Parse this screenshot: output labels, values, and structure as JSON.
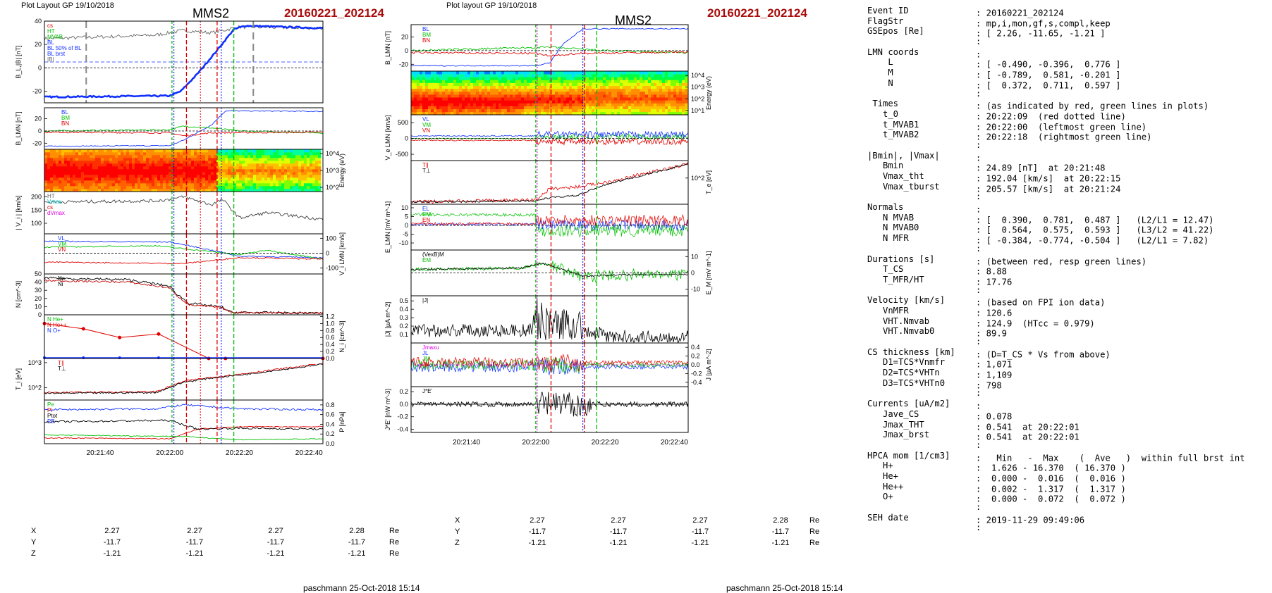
{
  "header": {
    "left_layout": "Plot Layout GP 19/10/2018",
    "mid_layout": "Plot layout GP 19/10/2018",
    "probe": "MMS2",
    "event": "20160221_202124",
    "footer": "paschmann 25-Oct-2018 15:14"
  },
  "colors": {
    "red": "#e00000",
    "green": "#00c000",
    "blue": "#1030ff",
    "black": "#000000",
    "magenta": "#e000e0",
    "cyan": "#00c0c0",
    "event": "#a80c0c"
  },
  "left_panels": [
    {
      "ylabel": "B_L,|B| [nT]",
      "ticks": [
        "40",
        "20",
        "0",
        "-20"
      ],
      "legend": [
        "cs",
        "HT",
        "MVAB",
        "BL",
        "BL 50% of BL",
        "BL brst",
        "|B|"
      ]
    },
    {
      "ylabel": "B_LMN [nT]",
      "ticks": [
        "20",
        "0",
        "-20"
      ],
      "legend": [
        "BL",
        "BM",
        "BN"
      ]
    },
    {
      "ylabel": "Energy (eV)",
      "ticks": [
        "10^4",
        "10^3",
        "10^2"
      ],
      "legend": []
    },
    {
      "ylabel": "| V_i | [km/s]",
      "ticks": [
        "200",
        "150",
        "100"
      ],
      "legend": [
        "HT",
        "Vmax",
        "cs",
        "dVmax"
      ]
    },
    {
      "ylabel": "V_i LMN [km/s]",
      "ticks": [
        "100",
        "0",
        "-100"
      ],
      "legend": [
        "VL",
        "VM",
        "VN"
      ]
    },
    {
      "ylabel": "N [cm^-3]",
      "ticks": [
        "50",
        "40",
        "30",
        "20",
        "10",
        "0"
      ],
      "legend": [
        "Ne",
        "Ni"
      ]
    },
    {
      "ylabel": "N_i [cm^-3]",
      "ticks": [
        "1.2",
        "1.0",
        "0.8",
        "0.6",
        "0.4",
        "0.2",
        "0.0"
      ],
      "legend": [
        "N He+",
        "N He++",
        "N O+"
      ]
    },
    {
      "ylabel": "T_i [eV]",
      "ticks": [
        "10^3",
        "10^2"
      ],
      "legend": [
        "T∥",
        "T⊥"
      ]
    },
    {
      "ylabel": "P [nPa]",
      "ticks": [
        "0.8",
        "0.6",
        "0.4",
        "0.2",
        "0.0"
      ],
      "legend": [
        "Pe",
        "Pi",
        "Ptot",
        "PB"
      ]
    }
  ],
  "mid_panels": [
    {
      "ylabel": "B_LMN [nT]",
      "ticks": [
        "20",
        "0",
        "-20"
      ],
      "legend": [
        "BL",
        "BM",
        "BN"
      ]
    },
    {
      "ylabel": "Energy (eV)",
      "ticks": [
        "10^4",
        "10^3",
        "10^2",
        "10^1"
      ],
      "legend": []
    },
    {
      "ylabel": "V_e LMN [km/s]",
      "ticks": [
        "500",
        "0",
        "-500"
      ],
      "legend": [
        "VL",
        "VM",
        "VN"
      ]
    },
    {
      "ylabel": "T_e [eV]",
      "ticks": [
        "10^2"
      ],
      "legend": [
        "T∥",
        "T⊥"
      ]
    },
    {
      "ylabel": "E_LMN [mV m^-1]",
      "ticks": [
        "10",
        "5",
        "0",
        "-5",
        "-10"
      ],
      "legend": [
        "EL",
        "EM",
        "EN"
      ]
    },
    {
      "ylabel": "E_M [mV m^-1]",
      "ticks": [
        "10",
        "0",
        "-10"
      ],
      "legend": [
        "(VexB)M",
        "EM"
      ]
    },
    {
      "ylabel": "|J| [µA m^-2]",
      "ticks": [
        "0.5",
        "0.4",
        "0.3",
        "0.2",
        "0.1"
      ],
      "legend": [
        "|J|"
      ]
    },
    {
      "ylabel": "J [µA m^-2]",
      "ticks": [
        "0.4",
        "0.2",
        "0.0",
        "-0.2",
        "-0.4"
      ],
      "legend": [
        "Jmaxu",
        "JL",
        "JM",
        "JN"
      ]
    },
    {
      "ylabel": "J*E' [nW m^-3]",
      "ticks": [
        "0.2",
        "0.0",
        "-0.2",
        "-0.4"
      ],
      "legend": [
        "J*E'"
      ]
    }
  ],
  "time_axis": {
    "labels": [
      "20:21:40",
      "20:22:00",
      "20:22:20",
      "20:22:40"
    ]
  },
  "coords": [
    {
      "label": "X",
      "values": [
        "2.27",
        "2.27",
        "2.27",
        "2.28"
      ],
      "unit": "Re"
    },
    {
      "label": "Y",
      "values": [
        "-11.7",
        "-11.7",
        "-11.7",
        "-11.7"
      ],
      "unit": "Re"
    },
    {
      "label": "Z",
      "values": [
        "-1.21",
        "-1.21",
        "-1.21",
        "-1.21"
      ],
      "unit": "Re"
    }
  ],
  "chart_data": [
    {
      "type": "line",
      "panel": "B_L |B|",
      "x": [
        "20:21:24",
        "20:21:40",
        "20:21:56",
        "20:22:00",
        "20:22:05",
        "20:22:10",
        "20:22:15",
        "20:22:20",
        "20:22:30",
        "20:22:44"
      ],
      "series": [
        {
          "name": "BL brst",
          "values": [
            -25,
            -25,
            -24,
            -24,
            -18,
            5,
            30,
            35,
            35,
            34
          ]
        },
        {
          "name": "|B|",
          "values": [
            25,
            26,
            27,
            28,
            30,
            30,
            33,
            35,
            35,
            34
          ]
        }
      ],
      "ylim": [
        -30,
        40
      ]
    },
    {
      "type": "line",
      "panel": "N",
      "x": [
        "20:21:24",
        "20:21:40",
        "20:21:56",
        "20:22:00",
        "20:22:05",
        "20:22:10",
        "20:22:15",
        "20:22:20",
        "20:22:44"
      ],
      "series": [
        {
          "name": "Ni",
          "values": [
            42,
            40,
            33,
            25,
            12,
            10,
            8,
            3,
            2
          ]
        },
        {
          "name": "Ne",
          "values": [
            45,
            43,
            35,
            27,
            14,
            11,
            9,
            3,
            2
          ]
        }
      ],
      "ylim": [
        0,
        50
      ]
    },
    {
      "type": "line",
      "panel": "N_i minor",
      "x": [
        "20:21:24",
        "20:21:34",
        "20:21:40",
        "20:21:48",
        "20:21:56",
        "20:22:00",
        "20:22:44"
      ],
      "series": [
        {
          "name": "N He+",
          "values": [
            0.02,
            0.02,
            0.02,
            0.02,
            0.02,
            0.02,
            0.02
          ]
        },
        {
          "name": "N He++",
          "values": [
            1.0,
            0.85,
            0.6,
            0.7,
            0.0,
            0.0,
            0.0
          ]
        },
        {
          "name": "N O+",
          "values": [
            0.05,
            0.04,
            0.03,
            0.03,
            0.02,
            0.01,
            0.01
          ]
        }
      ],
      "ylim": [
        0,
        1.2
      ]
    }
  ],
  "report": [
    {
      "k": "Event ID",
      "v": ": 20160221_202124"
    },
    {
      "k": "FlagStr",
      "v": ": mp,i,mon,gf,s,compl,keep"
    },
    {
      "k": "GSEpos [Re]",
      "v": ": [ 2.26, -11.65, -1.21 ]"
    },
    {
      "k": "",
      "v": ":"
    },
    {
      "k": "LMN coords",
      "v": ":"
    },
    {
      "k": "    L",
      "v": ": [ -0.490, -0.396,  0.776 ]"
    },
    {
      "k": "    M",
      "v": ": [ -0.789,  0.581, -0.201 ]"
    },
    {
      "k": "    N",
      "v": ": [  0.372,  0.711,  0.597 ]"
    },
    {
      "k": "",
      "v": ":"
    },
    {
      "k": " Times",
      "v": ": (as indicated by red, green lines in plots)"
    },
    {
      "k": "   t_0",
      "v": ": 20:22:09  (red dotted line)"
    },
    {
      "k": "   t_MVAB1",
      "v": ": 20:22:00  (leftmost green line)"
    },
    {
      "k": "   t_MVAB2",
      "v": ": 20:22:18  (rightmost green line)"
    },
    {
      "k": "",
      "v": ":"
    },
    {
      "k": "|Bmin|, |Vmax|",
      "v": ":"
    },
    {
      "k": "   Bmin",
      "v": ": 24.89 [nT]  at 20:21:48"
    },
    {
      "k": "   Vmax_tht",
      "v": ": 192.04 [km/s]  at 20:22:15"
    },
    {
      "k": "   Vmax_tburst",
      "v": ": 205.57 [km/s]  at 20:21:24"
    },
    {
      "k": "",
      "v": ":"
    },
    {
      "k": "Normals",
      "v": ":"
    },
    {
      "k": "   N MVAB",
      "v": ": [  0.390,  0.781,  0.487 ]   (L2/L1 = 12.47)"
    },
    {
      "k": "   N MVAB0",
      "v": ": [  0.564,  0.575,  0.593 ]   (L3/L2 = 41.22)"
    },
    {
      "k": "   N MFR",
      "v": ": [ -0.384, -0.774, -0.504 ]   (L2/L1 = 7.82)"
    },
    {
      "k": "",
      "v": ":"
    },
    {
      "k": "Durations [s]",
      "v": ": (between red, resp green lines)"
    },
    {
      "k": "   T_CS",
      "v": ": 8.88"
    },
    {
      "k": "   T_MFR/HT",
      "v": ": 17.76"
    },
    {
      "k": "",
      "v": ":"
    },
    {
      "k": "Velocity [km/s]",
      "v": ": (based on FPI ion data)"
    },
    {
      "k": "   VnMFR",
      "v": ": 120.6"
    },
    {
      "k": "   VHT.Nmvab",
      "v": ": 124.9  (HTcc = 0.979)"
    },
    {
      "k": "   VHT.Nmvab0",
      "v": ": 89.9"
    },
    {
      "k": "",
      "v": ":"
    },
    {
      "k": "CS thickness [km]",
      "v": ": (D=T_CS * Vs from above)"
    },
    {
      "k": "   D1=TCS*Vnmfr",
      "v": ": 1,071"
    },
    {
      "k": "   D2=TCS*VHTn",
      "v": ": 1,109"
    },
    {
      "k": "   D3=TCS*VHTn0",
      "v": ": 798"
    },
    {
      "k": "",
      "v": ":"
    },
    {
      "k": "Currents [uA/m2]",
      "v": ":"
    },
    {
      "k": "   Jave_CS",
      "v": ": 0.078"
    },
    {
      "k": "   Jmax_THT",
      "v": ": 0.541  at 20:22:01"
    },
    {
      "k": "   Jmax_brst",
      "v": ": 0.541  at 20:22:01"
    },
    {
      "k": "",
      "v": ":"
    },
    {
      "k": "HPCA mom [1/cm3]",
      "v": ":   Min   -  Max    (  Ave   )  within full brst int"
    },
    {
      "k": "   H+",
      "v": ":  1.626 - 16.370  ( 16.370 )"
    },
    {
      "k": "   He+",
      "v": ":  0.000 -  0.016  (  0.016 )"
    },
    {
      "k": "   He++",
      "v": ":  0.002 -  1.317  (  1.317 )"
    },
    {
      "k": "   O+",
      "v": ":  0.000 -  0.072  (  0.072 )"
    },
    {
      "k": "",
      "v": ":"
    },
    {
      "k": "SEH date",
      "v": ": 2019-11-29 09:49:06"
    },
    {
      "k": "",
      "v": ":"
    }
  ]
}
